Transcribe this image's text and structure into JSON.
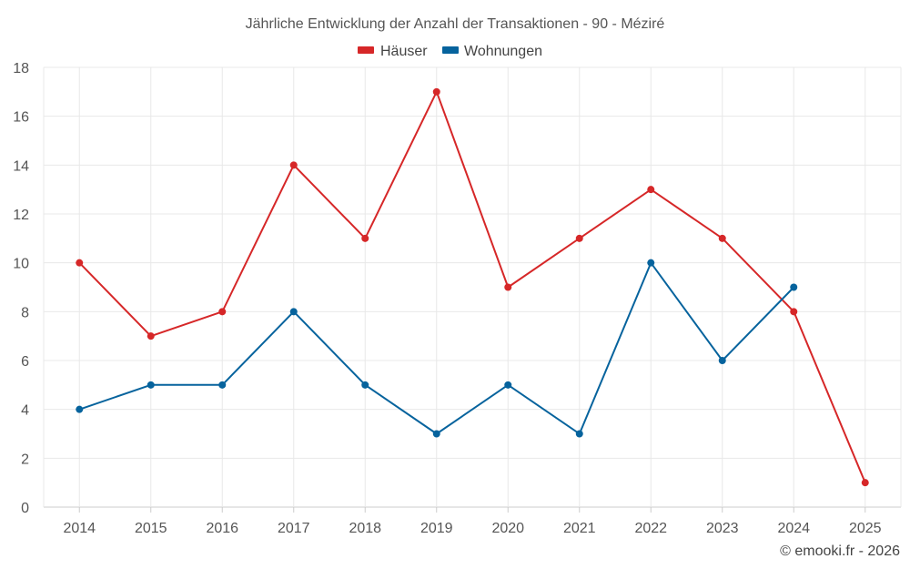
{
  "chart_data": {
    "type": "line",
    "title": "Jährliche Entwicklung der Anzahl der Transaktionen - 90 - Méziré",
    "categories": [
      "2014",
      "2015",
      "2016",
      "2017",
      "2018",
      "2019",
      "2020",
      "2021",
      "2022",
      "2023",
      "2024",
      "2025"
    ],
    "series": [
      {
        "name": "Häuser",
        "color": "#d62728",
        "values": [
          10,
          7,
          8,
          14,
          11,
          17,
          9,
          11,
          13,
          11,
          8,
          1
        ]
      },
      {
        "name": "Wohnungen",
        "color": "#06639d",
        "values": [
          4,
          5,
          5,
          8,
          5,
          3,
          5,
          3,
          10,
          6,
          9,
          null
        ]
      }
    ],
    "ylim": [
      0,
      18
    ],
    "yticks": [
      0,
      2,
      4,
      6,
      8,
      10,
      12,
      14,
      16,
      18
    ],
    "xlabel": "",
    "ylabel": "",
    "legend_position": "top-center",
    "grid": true
  },
  "credit": "© emooki.fr - 2026"
}
